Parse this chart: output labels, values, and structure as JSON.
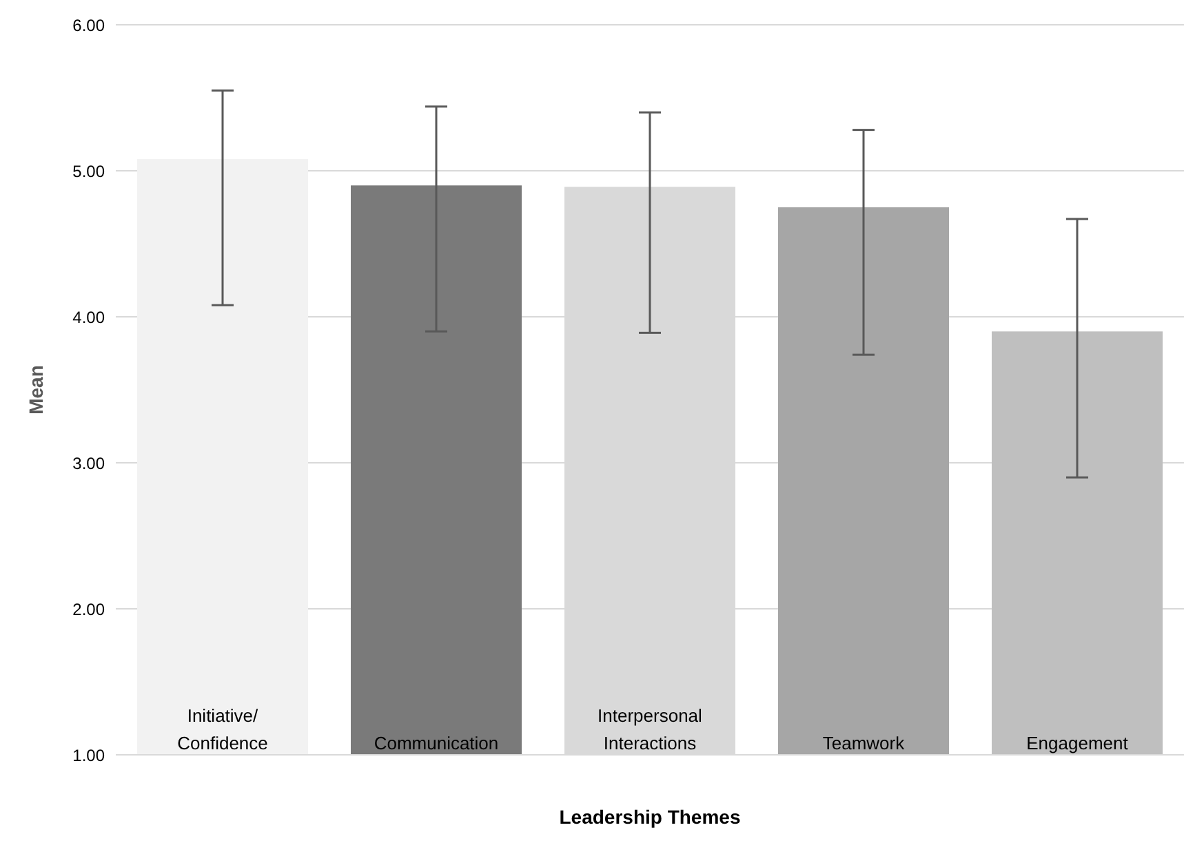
{
  "chart_data": {
    "type": "bar",
    "xlabel": "Leadership Themes",
    "ylabel": "Mean",
    "categories": [
      "Initiative/ Confidence",
      "Communication",
      "Interpersonal Interactions",
      "Teamwork",
      "Engagement"
    ],
    "values": [
      5.08,
      4.9,
      4.89,
      4.75,
      3.9
    ],
    "colors": [
      "#f2f2f2",
      "#7a7a7a",
      "#d9d9d9",
      "#a6a6a6",
      "#bfbfbf"
    ],
    "errors": [
      [
        4.08,
        5.55
      ],
      [
        3.9,
        5.44
      ],
      [
        3.89,
        5.4
      ],
      [
        3.74,
        5.28
      ],
      [
        2.9,
        4.67
      ]
    ],
    "ylim": [
      1,
      6
    ],
    "yticks": [
      {
        "value": 1,
        "label": "1.00"
      },
      {
        "value": 2,
        "label": "2.00"
      },
      {
        "value": 3,
        "label": "3.00"
      },
      {
        "value": 4,
        "label": "4.00"
      },
      {
        "value": 5,
        "label": "5.00"
      },
      {
        "value": 6,
        "label": "6.00"
      }
    ],
    "grid": "y"
  }
}
